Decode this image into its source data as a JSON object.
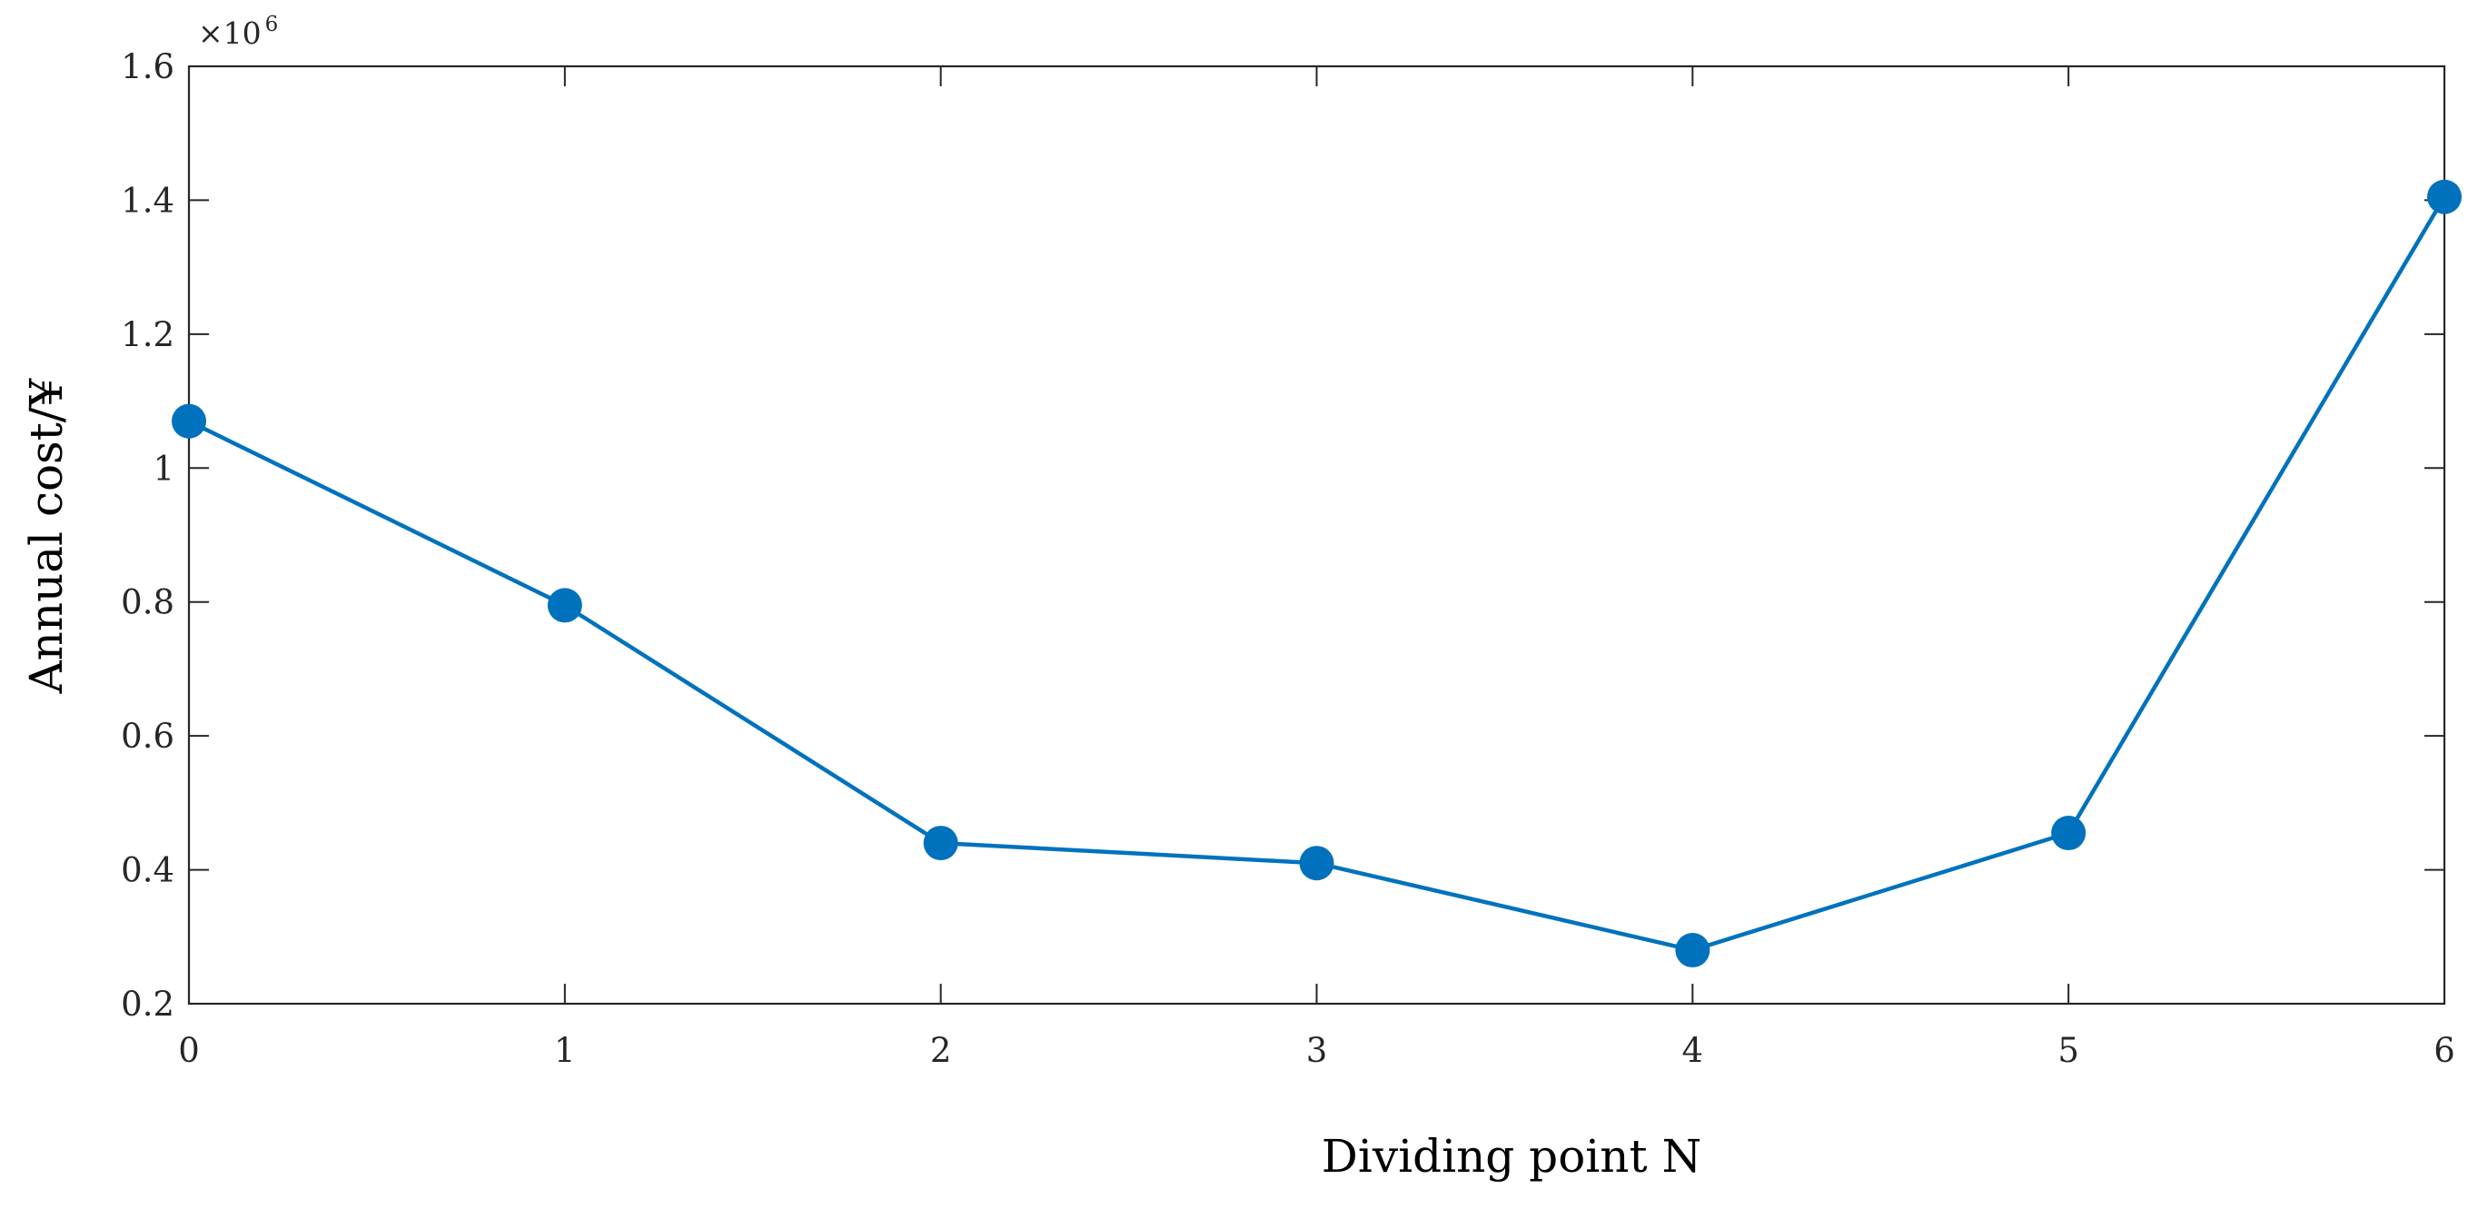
{
  "chart_data": {
    "type": "line",
    "title": "",
    "xlabel": "Dividing point N",
    "ylabel": "Annual  cost/¥",
    "y_multiplier": {
      "base": "×10",
      "exponent": "6"
    },
    "xlim": [
      0,
      6
    ],
    "ylim": [
      0.2,
      1.6
    ],
    "x_ticks": [
      0,
      1,
      2,
      3,
      4,
      5,
      6
    ],
    "x_tick_labels": [
      "0",
      "1",
      "2",
      "3",
      "4",
      "5",
      "6"
    ],
    "y_ticks": [
      0.2,
      0.4,
      0.6,
      0.8,
      1.0,
      1.2,
      1.4,
      1.6
    ],
    "y_tick_labels": [
      "0.2",
      "0.4",
      "0.6",
      "0.8",
      "1",
      "1.2",
      "1.4",
      "1.6"
    ],
    "grid": false,
    "box": true,
    "series": [
      {
        "x": [
          0,
          1,
          2,
          3,
          4,
          5,
          6
        ],
        "values": [
          1.07,
          0.795,
          0.44,
          0.41,
          0.28,
          0.455,
          1.405
        ],
        "color": "#0072BD",
        "marker": "filled-circle"
      }
    ]
  }
}
